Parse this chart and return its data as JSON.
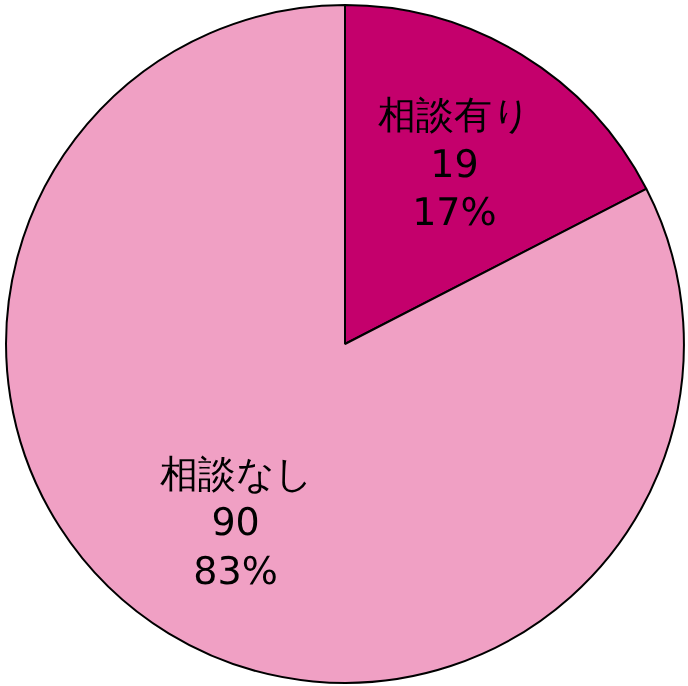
{
  "chart_data": {
    "type": "pie",
    "categories": [
      "相談有り",
      "相談なし"
    ],
    "values": [
      19,
      90
    ],
    "colors": [
      "#c4006c",
      "#f0a0c4"
    ],
    "value_labels": [
      "19\n17%",
      "90\n83%"
    ]
  }
}
